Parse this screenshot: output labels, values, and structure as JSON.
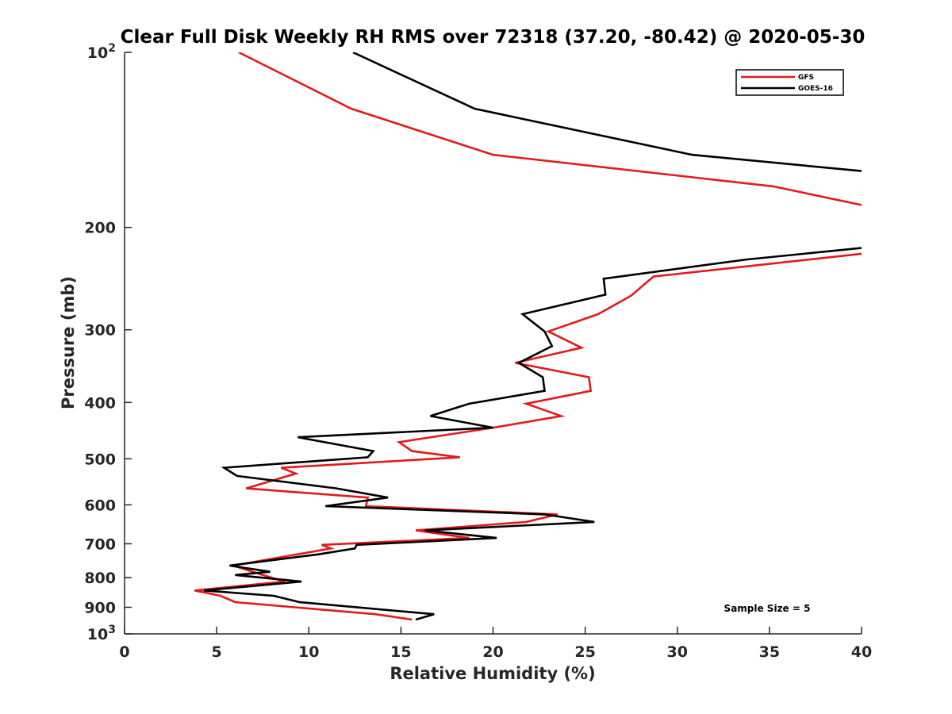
{
  "chart_data": {
    "type": "line",
    "title": "Clear Full Disk Weekly RH RMS over 72318 (37.20, -80.42) @ 2020-05-30",
    "xlabel": "Relative Humidity (%)",
    "ylabel": "Pressure (mb)",
    "xlim": [
      0,
      40
    ],
    "ylim": [
      100,
      1000
    ],
    "yscale": "log",
    "y_reversed": true,
    "grid": false,
    "legend_position": "top-right",
    "x_ticks": [
      0,
      5,
      10,
      15,
      20,
      25,
      30,
      35,
      40
    ],
    "y_ticks": [
      {
        "value": 100,
        "base": "10",
        "exp": "2"
      },
      {
        "value": 200,
        "label": "200"
      },
      {
        "value": 300,
        "label": "300"
      },
      {
        "value": 400,
        "label": "400"
      },
      {
        "value": 500,
        "label": "500"
      },
      {
        "value": 600,
        "label": "600"
      },
      {
        "value": 700,
        "label": "700"
      },
      {
        "value": 800,
        "label": "800"
      },
      {
        "value": 900,
        "label": "900"
      },
      {
        "value": 1000,
        "base": "10",
        "exp": "3"
      }
    ],
    "annotation": "Sample Size = 5",
    "series": [
      {
        "name": "GFS",
        "color": "#e31a1c",
        "segments": [
          [
            [
              6.2,
              100
            ],
            [
              12.3,
              125
            ],
            [
              20.0,
              150
            ],
            [
              35.2,
              170
            ],
            [
              40.0,
              183
            ]
          ],
          [
            [
              40.0,
              222
            ],
            [
              28.7,
              243
            ],
            [
              27.5,
              262
            ],
            [
              25.7,
              282
            ],
            [
              23.0,
              302
            ],
            [
              24.8,
              322
            ],
            [
              21.2,
              342
            ],
            [
              25.2,
              362
            ],
            [
              25.3,
              382
            ],
            [
              21.8,
              402
            ],
            [
              23.7,
              422
            ],
            [
              20.0,
              442
            ],
            [
              14.9,
              468
            ],
            [
              15.6,
              485
            ],
            [
              18.2,
              497
            ],
            [
              8.5,
              518
            ],
            [
              9.3,
              530
            ],
            [
              6.6,
              562
            ],
            [
              13.2,
              583
            ],
            [
              13.1,
              603
            ],
            [
              23.5,
              623
            ],
            [
              21.8,
              642
            ],
            [
              15.8,
              664
            ],
            [
              18.7,
              684
            ],
            [
              10.7,
              703
            ],
            [
              11.2,
              713
            ],
            [
              5.9,
              763
            ],
            [
              7.5,
              792
            ],
            [
              8.7,
              813
            ],
            [
              3.8,
              842
            ],
            [
              5.2,
              860
            ],
            [
              6.0,
              882
            ],
            [
              13.6,
              925
            ],
            [
              15.6,
              945
            ]
          ]
        ]
      },
      {
        "name": "GOES-16",
        "color": "#000000",
        "segments": [
          [
            [
              12.4,
              100
            ],
            [
              19.0,
              125
            ],
            [
              30.8,
              150
            ],
            [
              40.0,
              160
            ]
          ],
          [
            [
              40.0,
              217
            ],
            [
              33.8,
              227
            ],
            [
              26.0,
              245
            ],
            [
              26.1,
              261
            ],
            [
              21.6,
              282
            ],
            [
              22.8,
              302
            ],
            [
              23.2,
              320
            ],
            [
              21.4,
              342
            ],
            [
              22.7,
              362
            ],
            [
              22.8,
              382
            ],
            [
              18.7,
              402
            ],
            [
              16.6,
              422
            ],
            [
              20.0,
              442
            ],
            [
              9.4,
              459
            ],
            [
              13.5,
              485
            ],
            [
              13.2,
              497
            ],
            [
              5.4,
              518
            ],
            [
              6.1,
              535
            ],
            [
              11.5,
              562
            ],
            [
              14.3,
              583
            ],
            [
              10.9,
              603
            ],
            [
              22.8,
              623
            ],
            [
              25.5,
              642
            ],
            [
              16.3,
              664
            ],
            [
              20.2,
              684
            ],
            [
              12.6,
              703
            ],
            [
              12.5,
              713
            ],
            [
              10.5,
              730
            ],
            [
              5.7,
              763
            ],
            [
              7.9,
              782
            ],
            [
              6.0,
              792
            ],
            [
              9.6,
              813
            ],
            [
              4.3,
              842
            ],
            [
              8.1,
              860
            ],
            [
              9.5,
              882
            ],
            [
              16.8,
              925
            ],
            [
              15.8,
              945
            ]
          ]
        ]
      }
    ]
  }
}
